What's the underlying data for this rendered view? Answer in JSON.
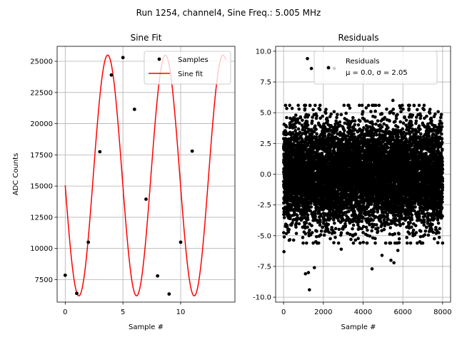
{
  "suptitle": "Run 1254, channel4, Sine Freq.: 5.005 MHz",
  "chart_data": [
    {
      "type": "line",
      "title": "Sine Fit",
      "xlabel": "Sample #",
      "ylabel": "ADC Counts",
      "xlim": [
        -0.7,
        14.7
      ],
      "ylim": [
        5700,
        26200
      ],
      "xticks": [
        0,
        5,
        10
      ],
      "yticks": [
        7500,
        10000,
        12500,
        15000,
        17500,
        20000,
        22500,
        25000
      ],
      "grid": true,
      "legend_position": "top-right",
      "series": [
        {
          "name": "Samples",
          "style": "points",
          "color": "#000000",
          "x": [
            0,
            1,
            2,
            3,
            4,
            5,
            6,
            7,
            8,
            9,
            10,
            11
          ],
          "y": [
            7850,
            6400,
            10500,
            17750,
            23900,
            25300,
            21150,
            13950,
            7800,
            6350,
            10500,
            17800
          ]
        },
        {
          "name": "Sine fit",
          "style": "line",
          "color": "#ff0000",
          "model": {
            "offset": 15850,
            "amplitude": 9650,
            "cycles_per_sample": 0.2002,
            "phase_deg": 184.7
          },
          "x_range": [
            0,
            13.9
          ]
        }
      ]
    },
    {
      "type": "scatter",
      "title": "Residuals",
      "xlabel": "Sample #",
      "ylabel": "",
      "xlim": [
        -400,
        8400
      ],
      "ylim": [
        -10.4,
        10.4
      ],
      "xticks": [
        0,
        2000,
        4000,
        6000,
        8000
      ],
      "yticks": [
        -10.0,
        -7.5,
        -5.0,
        -2.5,
        0.0,
        2.5,
        5.0,
        7.5,
        10.0
      ],
      "grid": true,
      "legend_position": "top-right",
      "series": [
        {
          "name": "Residuals",
          "legend_line2": "μ = 0.0, σ = 2.05",
          "style": "points",
          "color": "#000000",
          "mean": 0.0,
          "std": 2.05,
          "n": 8000,
          "x_range": [
            0,
            8000
          ],
          "outliers": [
            [
              20,
              -6.3
            ],
            [
              1200,
              9.4
            ],
            [
              1300,
              -9.4
            ],
            [
              1100,
              -8.1
            ],
            [
              1250,
              -8.0
            ],
            [
              4450,
              -7.7
            ],
            [
              2550,
              8.6
            ],
            [
              5550,
              -7.2
            ],
            [
              5400,
              -7.0
            ],
            [
              4950,
              -6.6
            ],
            [
              1400,
              8.6
            ],
            [
              5500,
              6.0
            ],
            [
              5750,
              -6.2
            ],
            [
              2900,
              -6.1
            ],
            [
              1550,
              -7.6
            ]
          ]
        }
      ]
    }
  ]
}
